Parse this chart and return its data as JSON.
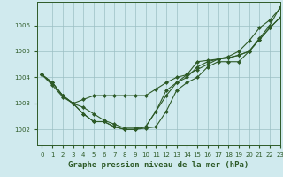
{
  "xlabel": "Graphe pression niveau de la mer (hPa)",
  "xlim": [
    -0.5,
    23
  ],
  "ylim": [
    1001.4,
    1006.9
  ],
  "yticks": [
    1002,
    1003,
    1004,
    1005,
    1006
  ],
  "xticks": [
    0,
    1,
    2,
    3,
    4,
    5,
    6,
    7,
    8,
    9,
    10,
    11,
    12,
    13,
    14,
    15,
    16,
    17,
    18,
    19,
    20,
    21,
    22,
    23
  ],
  "bg_color": "#d0eaee",
  "grid_color": "#9bbfc4",
  "line_color": "#2d5a27",
  "series": [
    [
      1004.1,
      1003.8,
      1003.3,
      1003.0,
      1002.6,
      1002.3,
      1002.3,
      1002.1,
      1002.0,
      1002.0,
      1002.05,
      1002.1,
      1002.7,
      1003.5,
      1003.8,
      1004.0,
      1004.4,
      1004.6,
      1004.6,
      1004.6,
      1005.0,
      1005.5,
      1006.0,
      1006.7
    ],
    [
      1004.1,
      1003.8,
      1003.3,
      1003.0,
      1002.6,
      1002.3,
      1002.3,
      1002.1,
      1002.0,
      1002.0,
      1002.1,
      1002.7,
      1003.5,
      1003.8,
      1004.0,
      1004.4,
      1004.6,
      1004.7,
      1004.8,
      1005.0,
      1005.4,
      1005.9,
      1006.2,
      1006.65
    ],
    [
      1004.1,
      1003.7,
      1003.25,
      1003.0,
      1002.85,
      1002.6,
      1002.35,
      1002.2,
      1002.05,
      1002.05,
      1002.1,
      1002.7,
      1003.3,
      1003.8,
      1004.1,
      1004.6,
      1004.65,
      1004.7,
      1004.75,
      1004.85,
      1005.0,
      1005.45,
      1005.9,
      1006.3
    ],
    [
      1004.1,
      1003.8,
      1003.3,
      1003.0,
      1003.15,
      1003.3,
      1003.3,
      1003.3,
      1003.3,
      1003.3,
      1003.3,
      1003.55,
      1003.8,
      1004.0,
      1004.1,
      1004.3,
      1004.5,
      1004.7,
      1004.75,
      1004.85,
      1005.0,
      1005.45,
      1005.9,
      1006.3
    ]
  ],
  "marker": "D",
  "markersize": 2.0,
  "linewidth": 0.8,
  "label_fontsize": 6.5,
  "tick_fontsize": 5.0
}
